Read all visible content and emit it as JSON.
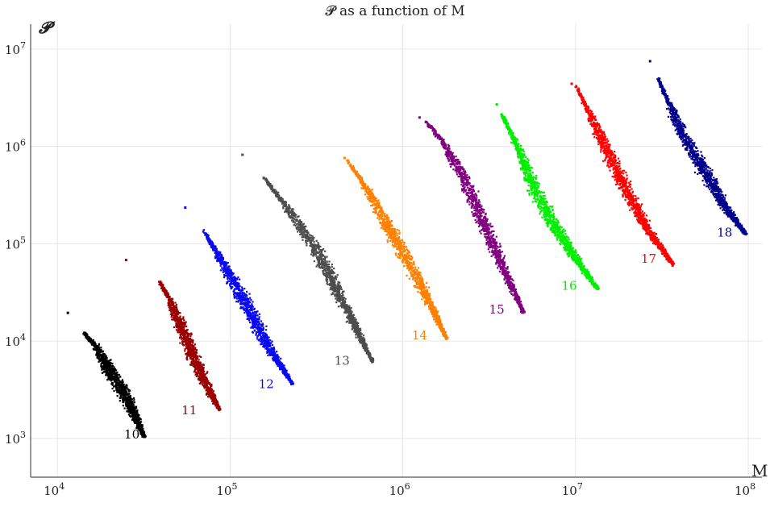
{
  "chart_data": {
    "type": "scatter",
    "title": "𝓟 as a function of M",
    "xlabel": "M",
    "ylabel": "𝓟",
    "xscale": "log",
    "yscale": "log",
    "xlim": [
      7000,
      120000000
    ],
    "ylim": [
      400,
      18000000
    ],
    "grid": true,
    "legend": "none",
    "x_ticks": [
      10000,
      100000,
      1000000,
      10000000,
      100000000
    ],
    "x_tick_labels": [
      {
        "base": "10",
        "exp": "4"
      },
      {
        "base": "10",
        "exp": "5"
      },
      {
        "base": "10",
        "exp": "6"
      },
      {
        "base": "10",
        "exp": "7"
      },
      {
        "base": "10",
        "exp": "8"
      }
    ],
    "y_ticks": [
      1000,
      10000,
      100000,
      1000000,
      10000000
    ],
    "y_tick_labels": [
      {
        "base": "10",
        "exp": "3"
      },
      {
        "base": "10",
        "exp": "4"
      },
      {
        "base": "10",
        "exp": "5"
      },
      {
        "base": "10",
        "exp": "6"
      },
      {
        "base": "10",
        "exp": "7"
      }
    ],
    "series": [
      {
        "label": "10",
        "color": "#000000",
        "outlier": [
          11500,
          19500
        ],
        "trend": [
          [
            14200,
            12300
          ],
          [
            17000,
            8500
          ],
          [
            20000,
            5000
          ],
          [
            24000,
            3100
          ],
          [
            28000,
            1700
          ],
          [
            32000,
            1030
          ]
        ],
        "label_at": [
          27000,
          1100
        ]
      },
      {
        "label": "11",
        "color": "#9b0000",
        "outlier": [
          25000,
          68000
        ],
        "trend": [
          [
            39000,
            41000
          ],
          [
            45000,
            26000
          ],
          [
            52000,
            14000
          ],
          [
            60000,
            7500
          ],
          [
            72000,
            3700
          ],
          [
            87000,
            1950
          ]
        ],
        "label_at": [
          58000,
          1950
        ]
      },
      {
        "label": "12",
        "color": "#0a0aee",
        "outlier": [
          55000,
          235000
        ],
        "trend": [
          [
            70000,
            138000
          ],
          [
            85000,
            78000
          ],
          [
            105000,
            40000
          ],
          [
            130000,
            20000
          ],
          [
            165000,
            9000
          ],
          [
            230000,
            3600
          ]
        ],
        "label_at": [
          162000,
          3600
        ]
      },
      {
        "label": "13",
        "color": "#4d4d4d",
        "outlier": [
          118000,
          820000
        ],
        "trend": [
          [
            157000,
            480000
          ],
          [
            195000,
            290000
          ],
          [
            250000,
            160000
          ],
          [
            330000,
            75000
          ],
          [
            450000,
            25000
          ],
          [
            670000,
            6100
          ]
        ],
        "label_at": [
          445000,
          6300
        ]
      },
      {
        "label": "14",
        "color": "#ff8000",
        "outlier": [
          460000,
          760000
        ],
        "trend": [
          [
            475000,
            720000
          ],
          [
            560000,
            480000
          ],
          [
            700000,
            250000
          ],
          [
            900000,
            110000
          ],
          [
            1250000,
            40000
          ],
          [
            1800000,
            10500
          ]
        ],
        "label_at": [
          1250000,
          11500
        ]
      },
      {
        "label": "15",
        "color": "#800080",
        "outlier": [
          1250000,
          1980000
        ],
        "trend": [
          [
            1350000,
            1850000
          ],
          [
            1650000,
            1200000
          ],
          [
            2100000,
            600000
          ],
          [
            2700000,
            230000
          ],
          [
            3600000,
            70000
          ],
          [
            5000000,
            19500
          ]
        ],
        "label_at": [
          3500000,
          21000
        ]
      },
      {
        "label": "16",
        "color": "#00ee00",
        "outlier": [
          3500000,
          2700000
        ],
        "trend": [
          [
            3700000,
            2200000
          ],
          [
            4500000,
            1100000
          ],
          [
            5600000,
            420000
          ],
          [
            7000000,
            190000
          ],
          [
            9500000,
            80000
          ],
          [
            13500000,
            34000
          ]
        ],
        "label_at": [
          9200000,
          37000
        ]
      },
      {
        "label": "17",
        "color": "#ff0000",
        "outlier": [
          9500000,
          4400000
        ],
        "trend": [
          [
            10000000,
            4300000
          ],
          [
            12000000,
            2200000
          ],
          [
            15000000,
            950000
          ],
          [
            19000000,
            400000
          ],
          [
            26000000,
            140000
          ],
          [
            37000000,
            60000
          ]
        ],
        "label_at": [
          26500000,
          70000
        ]
      },
      {
        "label": "18",
        "color": "#00008b",
        "outlier": [
          27000000,
          7500000
        ],
        "trend": [
          [
            30000000,
            5000000
          ],
          [
            36000000,
            2400000
          ],
          [
            43000000,
            1200000
          ],
          [
            55000000,
            580000
          ],
          [
            72000000,
            250000
          ],
          [
            97000000,
            125000
          ]
        ],
        "label_at": [
          73000000,
          130000
        ]
      }
    ]
  }
}
